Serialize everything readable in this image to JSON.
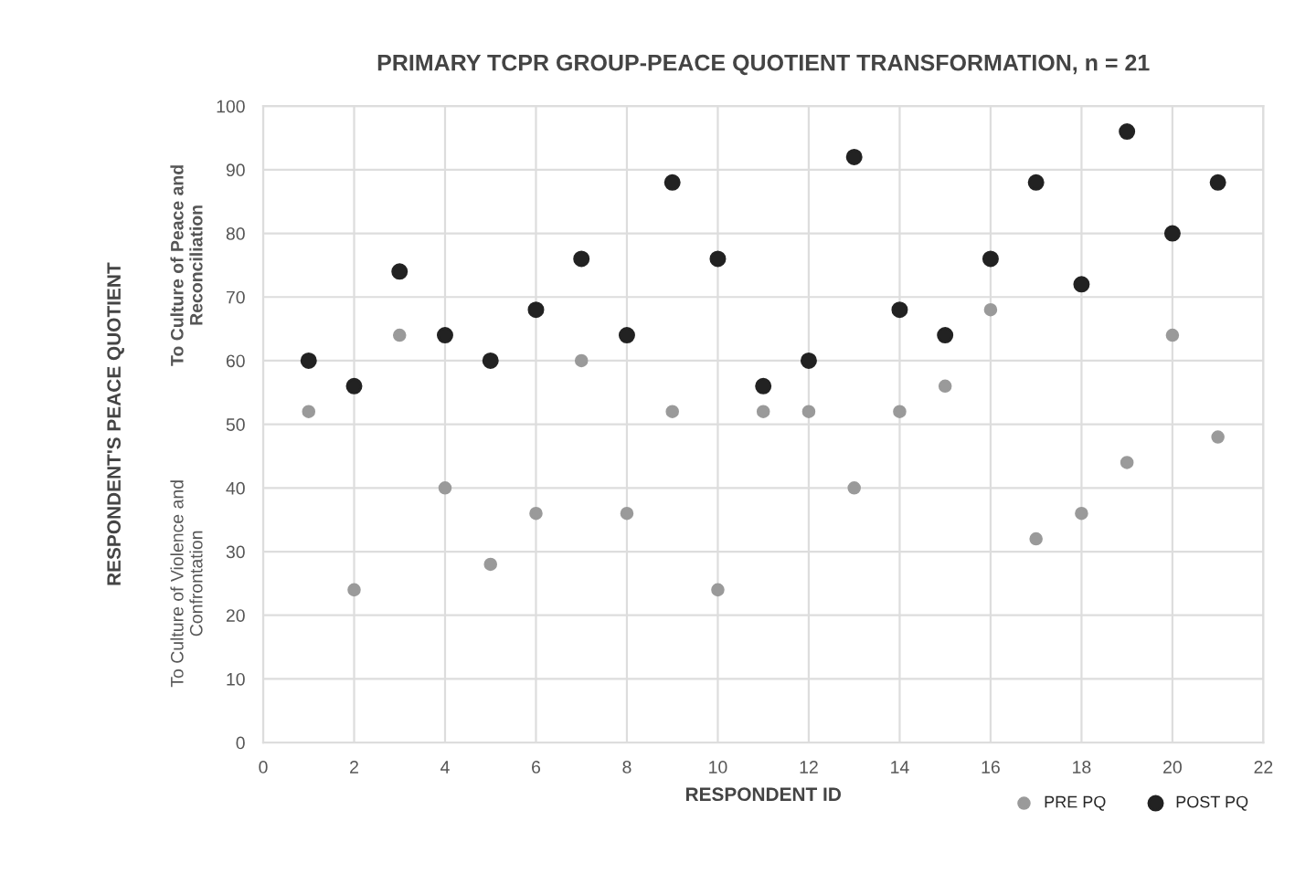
{
  "chart_data": {
    "type": "scatter",
    "title": "PRIMARY TCPR GROUP-PEACE QUOTIENT TRANSFORMATION, n = 21",
    "xlabel": "RESPONDENT ID",
    "ylabel": "RESPONDENT'S PEACE QUOTIENT",
    "annotations": [
      "To Culture of Peace and\nReconciliation",
      "To Culture of Violence and\nConfrontation"
    ],
    "x": [
      1,
      2,
      3,
      4,
      5,
      6,
      7,
      8,
      9,
      10,
      11,
      12,
      13,
      14,
      15,
      16,
      17,
      18,
      19,
      20,
      21
    ],
    "series": [
      {
        "name": "PRE PQ",
        "color": "#9a9a9a",
        "values": [
          52,
          24,
          64,
          40,
          28,
          36,
          60,
          36,
          52,
          24,
          52,
          52,
          40,
          52,
          56,
          68,
          32,
          36,
          44,
          64,
          48
        ]
      },
      {
        "name": "POST PQ",
        "color": "#222222",
        "values": [
          60,
          56,
          74,
          64,
          60,
          68,
          76,
          64,
          88,
          76,
          56,
          60,
          92,
          68,
          64,
          76,
          88,
          72,
          96,
          80,
          88
        ]
      }
    ],
    "xlim": [
      0,
      22
    ],
    "xticks": [
      0,
      2,
      4,
      6,
      8,
      10,
      12,
      14,
      16,
      18,
      20,
      22
    ],
    "ylim": [
      0,
      100
    ],
    "yticks": [
      0,
      10,
      20,
      30,
      40,
      50,
      60,
      70,
      80,
      90,
      100
    ],
    "grid": true,
    "legend": "bottom right",
    "marker": "circle"
  }
}
